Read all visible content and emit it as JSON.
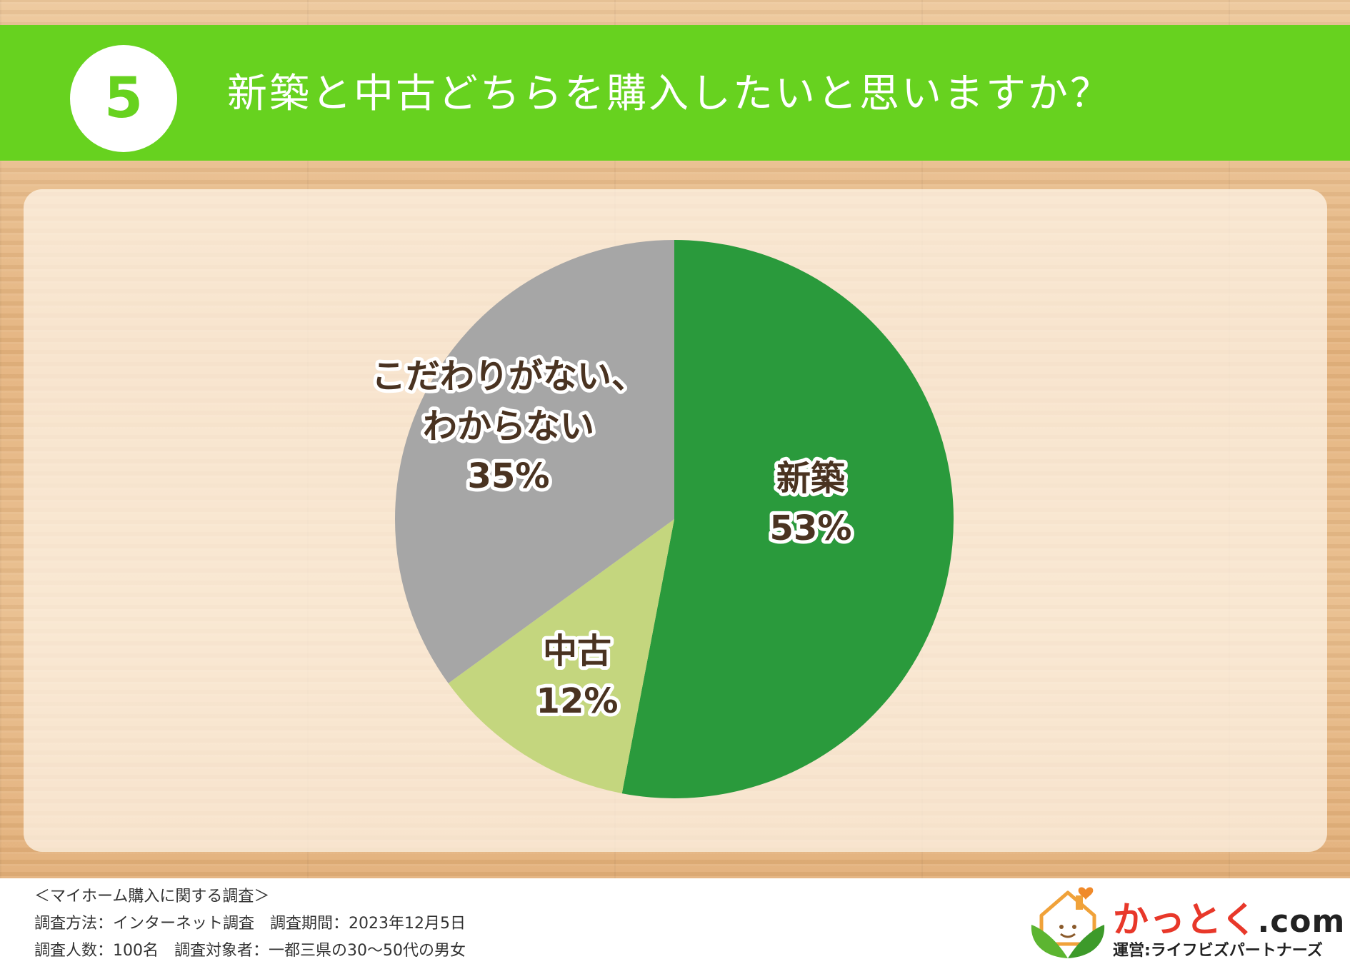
{
  "header": {
    "number": "5",
    "title": "新築と中古どちらを購入したいと思いますか？"
  },
  "colors": {
    "header_bg": "#67d21f",
    "new": "#2a9a3c",
    "used": "#c4d67e",
    "undecided": "#a6a6a6",
    "label_text": "#4a3321"
  },
  "chart_data": {
    "type": "pie",
    "title": "新築と中古どちらを購入したいと思いますか？",
    "slices": [
      {
        "label": "新築",
        "value": 53,
        "value_label": "53%",
        "color": "#2a9a3c"
      },
      {
        "label": "中古",
        "value": 12,
        "value_label": "12%",
        "color": "#c4d67e"
      },
      {
        "label": "こだわりがない、わからない",
        "label_lines": [
          "こだわりがない、",
          "わからない"
        ],
        "value": 35,
        "value_label": "35%",
        "color": "#a6a6a6"
      }
    ],
    "start": "top",
    "direction": "clockwise"
  },
  "footer": {
    "notes": [
      "＜マイホーム購入に関する調査＞",
      "調査方法：インターネット調査　調査期間：2023年12月5日",
      "調査人数：100名　調査対象者：一都三県の30〜50代の男女"
    ],
    "logo": {
      "name": "かっとく",
      "suffix": ".com",
      "sub": "運営:ライフビズパートナーズ",
      "icon": "house-leaf-icon"
    }
  }
}
